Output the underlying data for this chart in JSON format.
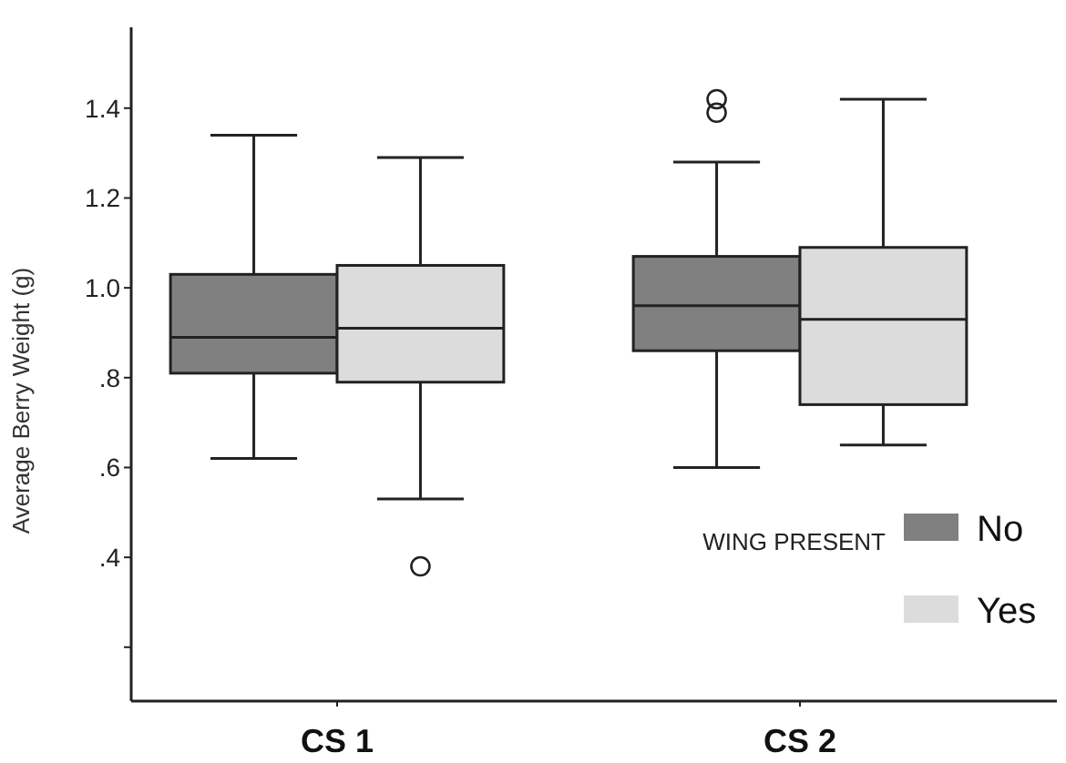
{
  "chart_data": {
    "type": "box",
    "ylabel": "Average Berry Weight (g)",
    "legend_title": "WING PRESENT",
    "legend": "bottom right",
    "categories": [
      "CS 1",
      "CS 2"
    ],
    "ylim": [
      0.08,
      1.58
    ],
    "yticks": [
      {
        "value": 0.2,
        "label": null
      },
      {
        "value": 0.4,
        "label": ".4"
      },
      {
        "value": 0.6,
        "label": ".6"
      },
      {
        "value": 0.8,
        "label": ".8"
      },
      {
        "value": 1.0,
        "label": "1.0"
      },
      {
        "value": 1.2,
        "label": "1.2"
      },
      {
        "value": 1.4,
        "label": "1.4"
      }
    ],
    "series": [
      {
        "name": "No",
        "color": "#808080",
        "boxes": [
          {
            "low": 0.62,
            "q1": 0.81,
            "median": 0.89,
            "q3": 1.03,
            "high": 1.34
          },
          {
            "low": 0.6,
            "q1": 0.86,
            "median": 0.96,
            "q3": 1.07,
            "high": 1.28,
            "outliers": [
              1.42,
              1.39
            ]
          }
        ]
      },
      {
        "name": "Yes",
        "color": "#dcdcdc",
        "boxes": [
          {
            "low": 0.53,
            "q1": 0.79,
            "median": 0.91,
            "q3": 1.05,
            "high": 1.29,
            "outliers": [
              0.38
            ]
          },
          {
            "low": 0.65,
            "q1": 0.74,
            "median": 0.93,
            "q3": 1.09,
            "high": 1.42
          }
        ]
      }
    ]
  }
}
